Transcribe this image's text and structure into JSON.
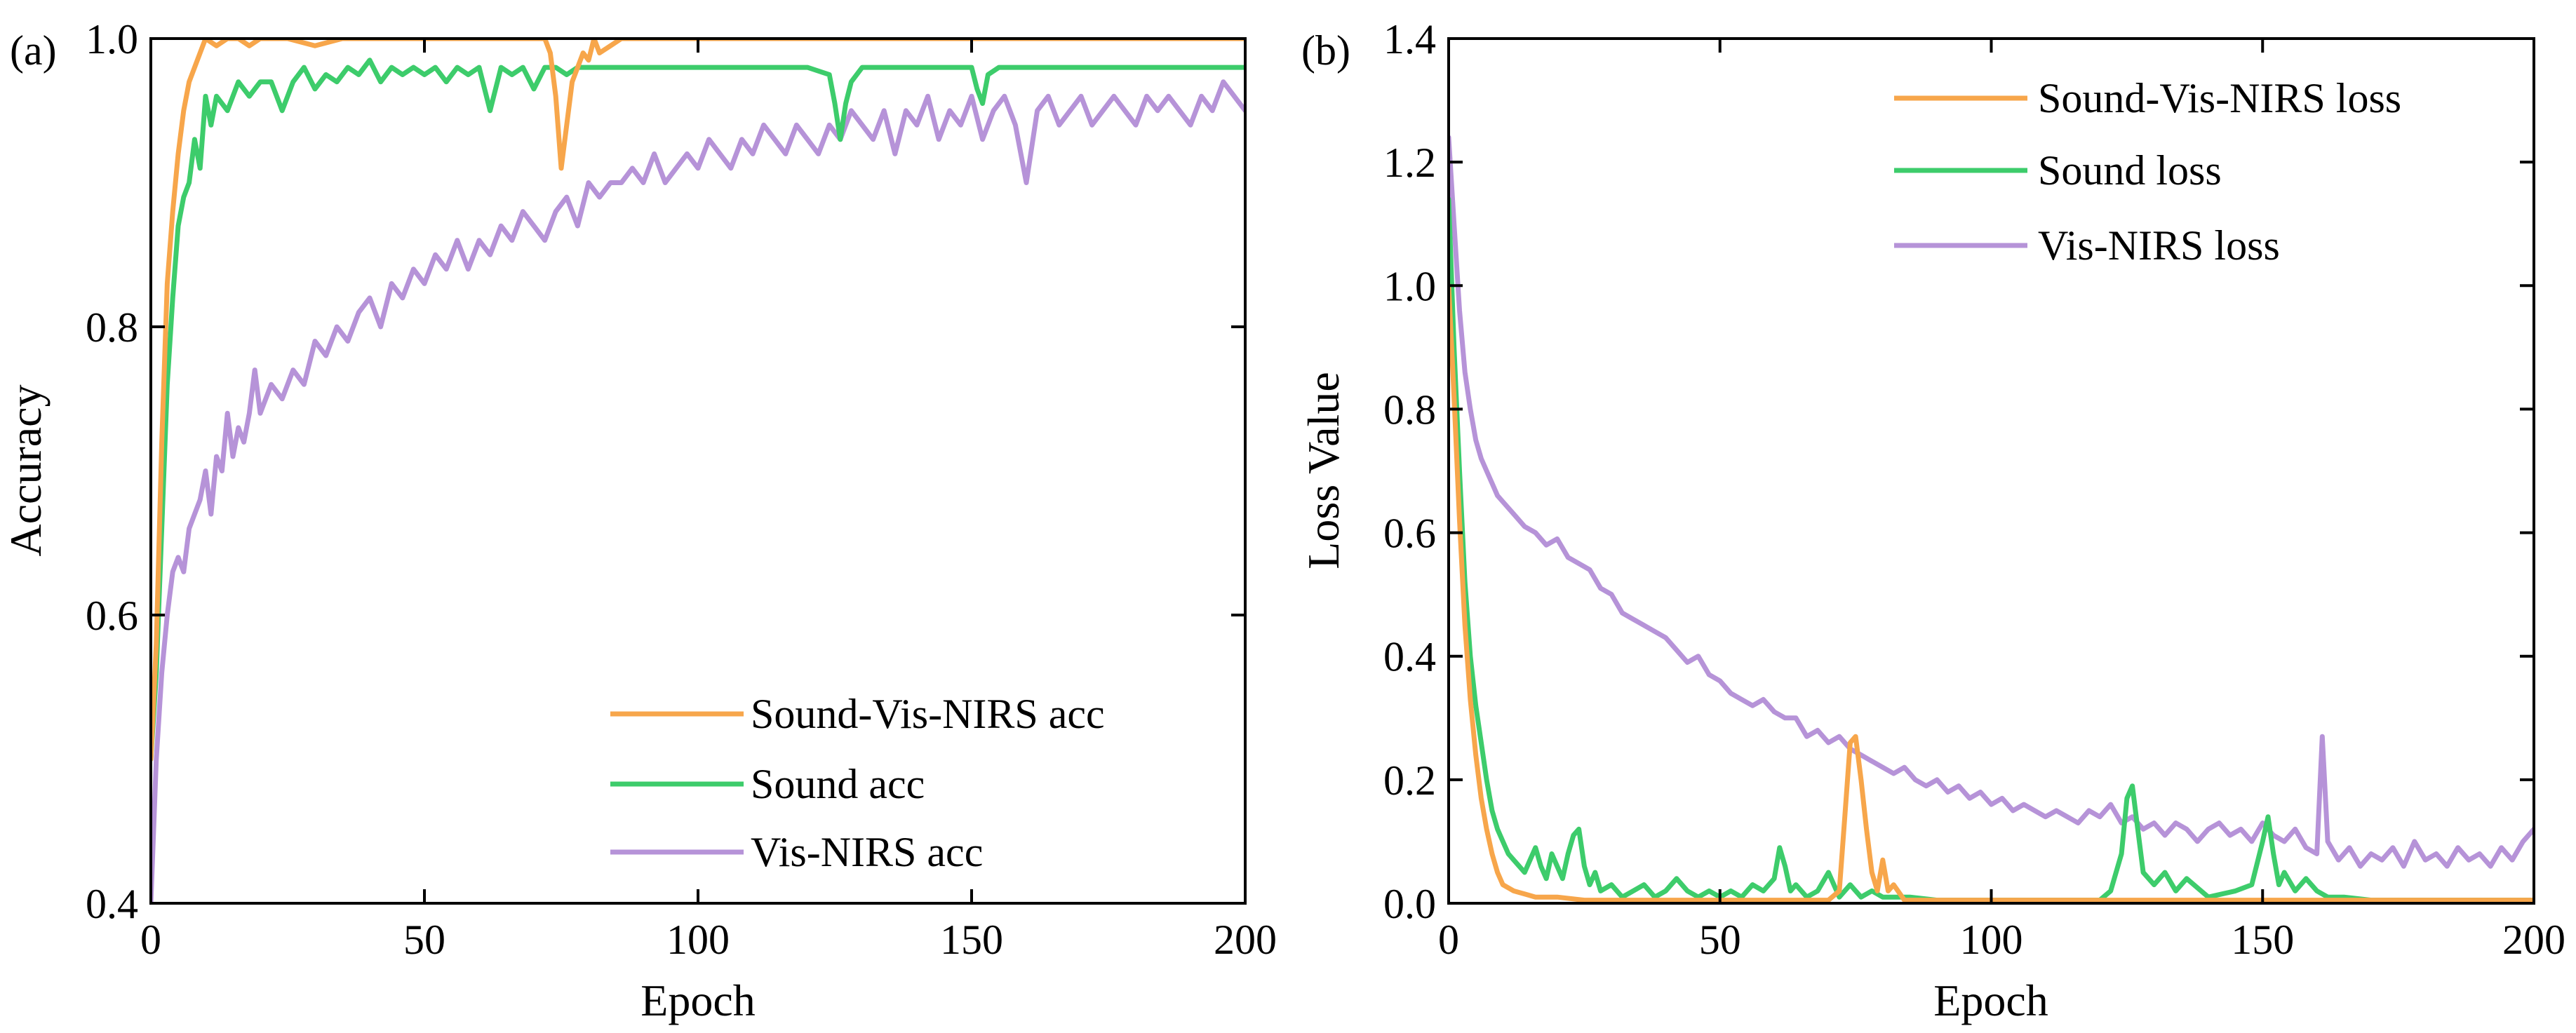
{
  "figure": {
    "colors": {
      "fused": "#F7A64B",
      "sound": "#3DCC6B",
      "visnirs": "#B693D8",
      "axis": "#000000"
    }
  },
  "chart_data": [
    {
      "panel": "(a)",
      "type": "line",
      "xlabel": "Epoch",
      "ylabel": "Accuracy",
      "xlim": [
        0,
        200
      ],
      "ylim": [
        0.4,
        1.0
      ],
      "xticks": [
        0,
        50,
        100,
        150,
        200
      ],
      "yticks": [
        0.4,
        0.6,
        0.8,
        1.0
      ],
      "xtick_labels": [
        "0",
        "50",
        "100",
        "150",
        "200"
      ],
      "ytick_labels": [
        "0.4",
        "0.6",
        "0.8",
        "1.0"
      ],
      "grid": false,
      "legend_position": "bottom-right",
      "series": [
        {
          "name": "Sound-Vis-NIRS acc",
          "color": "#F7A64B",
          "x": [
            0,
            1,
            2,
            3,
            4,
            5,
            6,
            7,
            8,
            9,
            10,
            12,
            14,
            16,
            18,
            20,
            25,
            30,
            35,
            40,
            45,
            50,
            55,
            60,
            65,
            70,
            72,
            73,
            74,
            75,
            76,
            77,
            78,
            79,
            80,
            81,
            82,
            84,
            86,
            90,
            100,
            120,
            140,
            160,
            180,
            200
          ],
          "y": [
            0.5,
            0.58,
            0.72,
            0.83,
            0.88,
            0.92,
            0.95,
            0.97,
            0.98,
            0.99,
            1.0,
            0.995,
            1.0,
            1.0,
            0.995,
            1.0,
            1.0,
            0.995,
            1.0,
            1.0,
            1.0,
            1.0,
            1.0,
            1.0,
            1.0,
            1.0,
            1.0,
            0.99,
            0.96,
            0.91,
            0.94,
            0.97,
            0.98,
            0.99,
            0.985,
            1.0,
            0.99,
            0.995,
            1.0,
            1.0,
            1.0,
            1.0,
            1.0,
            1.0,
            1.0,
            1.0
          ]
        },
        {
          "name": "Sound acc",
          "color": "#3DCC6B",
          "x": [
            0,
            1,
            2,
            3,
            4,
            5,
            6,
            7,
            8,
            9,
            10,
            11,
            12,
            14,
            16,
            18,
            20,
            22,
            24,
            26,
            28,
            30,
            32,
            34,
            36,
            38,
            40,
            42,
            44,
            46,
            48,
            50,
            52,
            54,
            56,
            58,
            60,
            62,
            64,
            66,
            68,
            70,
            72,
            74,
            76,
            78,
            80,
            85,
            90,
            100,
            110,
            120,
            124,
            125,
            126,
            127,
            128,
            130,
            135,
            140,
            145,
            150,
            151,
            152,
            153,
            155,
            160,
            170,
            180,
            190,
            200
          ],
          "y": [
            0.5,
            0.56,
            0.66,
            0.76,
            0.82,
            0.87,
            0.89,
            0.9,
            0.93,
            0.91,
            0.96,
            0.94,
            0.96,
            0.95,
            0.97,
            0.96,
            0.97,
            0.97,
            0.95,
            0.97,
            0.98,
            0.965,
            0.975,
            0.97,
            0.98,
            0.975,
            0.985,
            0.97,
            0.98,
            0.975,
            0.98,
            0.975,
            0.98,
            0.97,
            0.98,
            0.975,
            0.98,
            0.95,
            0.98,
            0.975,
            0.98,
            0.965,
            0.98,
            0.98,
            0.975,
            0.98,
            0.98,
            0.98,
            0.98,
            0.98,
            0.98,
            0.98,
            0.975,
            0.955,
            0.93,
            0.955,
            0.97,
            0.98,
            0.98,
            0.98,
            0.98,
            0.98,
            0.965,
            0.955,
            0.975,
            0.98,
            0.98,
            0.98,
            0.98,
            0.98,
            0.98
          ]
        },
        {
          "name": "Vis-NIRS acc",
          "color": "#B693D8",
          "x": [
            0,
            1,
            2,
            3,
            4,
            5,
            6,
            7,
            8,
            9,
            10,
            11,
            12,
            13,
            14,
            15,
            16,
            17,
            18,
            19,
            20,
            22,
            24,
            26,
            28,
            30,
            32,
            34,
            36,
            38,
            40,
            42,
            44,
            46,
            48,
            50,
            52,
            54,
            56,
            58,
            60,
            62,
            64,
            66,
            68,
            70,
            72,
            74,
            76,
            78,
            80,
            82,
            84,
            86,
            88,
            90,
            92,
            94,
            96,
            98,
            100,
            102,
            104,
            106,
            108,
            110,
            112,
            114,
            116,
            118,
            120,
            122,
            124,
            126,
            128,
            130,
            132,
            134,
            136,
            138,
            140,
            142,
            144,
            146,
            148,
            150,
            152,
            154,
            156,
            158,
            160,
            162,
            164,
            166,
            168,
            170,
            172,
            174,
            176,
            178,
            180,
            182,
            184,
            186,
            188,
            190,
            192,
            194,
            196,
            198,
            200
          ],
          "y": [
            0.4,
            0.5,
            0.56,
            0.6,
            0.63,
            0.64,
            0.63,
            0.66,
            0.67,
            0.68,
            0.7,
            0.67,
            0.71,
            0.7,
            0.74,
            0.71,
            0.73,
            0.72,
            0.74,
            0.77,
            0.74,
            0.76,
            0.75,
            0.77,
            0.76,
            0.79,
            0.78,
            0.8,
            0.79,
            0.81,
            0.82,
            0.8,
            0.83,
            0.82,
            0.84,
            0.83,
            0.85,
            0.84,
            0.86,
            0.84,
            0.86,
            0.85,
            0.87,
            0.86,
            0.88,
            0.87,
            0.86,
            0.88,
            0.89,
            0.87,
            0.9,
            0.89,
            0.9,
            0.9,
            0.91,
            0.9,
            0.92,
            0.9,
            0.91,
            0.92,
            0.91,
            0.93,
            0.92,
            0.91,
            0.93,
            0.92,
            0.94,
            0.93,
            0.92,
            0.94,
            0.93,
            0.92,
            0.94,
            0.93,
            0.95,
            0.94,
            0.93,
            0.95,
            0.92,
            0.95,
            0.94,
            0.96,
            0.93,
            0.95,
            0.94,
            0.96,
            0.93,
            0.95,
            0.96,
            0.94,
            0.9,
            0.95,
            0.96,
            0.94,
            0.95,
            0.96,
            0.94,
            0.95,
            0.96,
            0.95,
            0.94,
            0.96,
            0.95,
            0.96,
            0.95,
            0.94,
            0.96,
            0.95,
            0.97,
            0.96,
            0.95
          ]
        }
      ]
    },
    {
      "panel": "(b)",
      "type": "line",
      "xlabel": "Epoch",
      "ylabel": "Loss Value",
      "xlim": [
        0,
        200
      ],
      "ylim": [
        0,
        1.4
      ],
      "xticks": [
        0,
        50,
        100,
        150,
        200
      ],
      "yticks": [
        0.0,
        0.2,
        0.4,
        0.6,
        0.8,
        1.0,
        1.2,
        1.4
      ],
      "xtick_labels": [
        "0",
        "50",
        "100",
        "150",
        "200"
      ],
      "ytick_labels": [
        "0.0",
        "0.2",
        "0.4",
        "0.6",
        "0.8",
        "1.0",
        "1.2",
        "1.4"
      ],
      "grid": false,
      "legend_position": "top-right",
      "series": [
        {
          "name": "Sound-Vis-NIRS loss",
          "color": "#F7A64B",
          "x": [
            0,
            1,
            2,
            3,
            4,
            5,
            6,
            7,
            8,
            9,
            10,
            12,
            14,
            16,
            18,
            20,
            25,
            30,
            40,
            50,
            60,
            70,
            72,
            73,
            74,
            75,
            76,
            77,
            78,
            79,
            80,
            81,
            82,
            84,
            90,
            100,
            120,
            140,
            160,
            180,
            200
          ],
          "y": [
            1.0,
            0.82,
            0.62,
            0.45,
            0.33,
            0.24,
            0.17,
            0.12,
            0.08,
            0.05,
            0.03,
            0.02,
            0.015,
            0.01,
            0.01,
            0.01,
            0.005,
            0.005,
            0.005,
            0.005,
            0.005,
            0.005,
            0.02,
            0.14,
            0.26,
            0.27,
            0.2,
            0.12,
            0.05,
            0.02,
            0.07,
            0.02,
            0.03,
            0.005,
            0.005,
            0.005,
            0.005,
            0.005,
            0.005,
            0.005,
            0.005
          ]
        },
        {
          "name": "Sound loss",
          "color": "#3DCC6B",
          "x": [
            0,
            1,
            2,
            3,
            4,
            5,
            6,
            7,
            8,
            9,
            10,
            11,
            12,
            13,
            14,
            15,
            16,
            17,
            18,
            19,
            20,
            21,
            22,
            23,
            24,
            25,
            26,
            27,
            28,
            30,
            32,
            34,
            36,
            38,
            40,
            42,
            44,
            46,
            48,
            50,
            52,
            54,
            56,
            58,
            60,
            61,
            62,
            63,
            64,
            66,
            68,
            70,
            72,
            74,
            76,
            78,
            80,
            85,
            90,
            100,
            110,
            115,
            120,
            122,
            124,
            125,
            126,
            127,
            128,
            130,
            132,
            134,
            136,
            140,
            145,
            148,
            150,
            151,
            152,
            153,
            154,
            156,
            158,
            160,
            162,
            165,
            170,
            180,
            190,
            200
          ],
          "y": [
            1.14,
            0.9,
            0.7,
            0.52,
            0.4,
            0.32,
            0.26,
            0.2,
            0.15,
            0.12,
            0.1,
            0.08,
            0.07,
            0.06,
            0.05,
            0.07,
            0.09,
            0.06,
            0.04,
            0.08,
            0.06,
            0.04,
            0.08,
            0.11,
            0.12,
            0.06,
            0.03,
            0.05,
            0.02,
            0.03,
            0.01,
            0.02,
            0.03,
            0.01,
            0.02,
            0.04,
            0.02,
            0.01,
            0.02,
            0.01,
            0.02,
            0.01,
            0.03,
            0.02,
            0.04,
            0.09,
            0.06,
            0.02,
            0.03,
            0.01,
            0.02,
            0.05,
            0.01,
            0.03,
            0.01,
            0.02,
            0.01,
            0.01,
            0.005,
            0.005,
            0.005,
            0.005,
            0.005,
            0.02,
            0.08,
            0.17,
            0.19,
            0.12,
            0.05,
            0.03,
            0.05,
            0.02,
            0.04,
            0.01,
            0.02,
            0.03,
            0.1,
            0.14,
            0.08,
            0.03,
            0.05,
            0.02,
            0.04,
            0.02,
            0.01,
            0.01,
            0.005,
            0.005,
            0.005,
            0.005
          ]
        },
        {
          "name": "Vis-NIRS loss",
          "color": "#B693D8",
          "x": [
            0,
            1,
            2,
            3,
            4,
            5,
            6,
            7,
            8,
            9,
            10,
            12,
            14,
            16,
            18,
            20,
            22,
            24,
            26,
            28,
            30,
            32,
            34,
            36,
            38,
            40,
            42,
            44,
            46,
            48,
            50,
            52,
            54,
            56,
            58,
            60,
            62,
            64,
            66,
            68,
            70,
            72,
            74,
            76,
            78,
            80,
            82,
            84,
            86,
            88,
            90,
            92,
            94,
            96,
            98,
            100,
            102,
            104,
            106,
            108,
            110,
            112,
            114,
            116,
            118,
            120,
            122,
            124,
            126,
            128,
            130,
            132,
            134,
            136,
            138,
            140,
            142,
            144,
            146,
            148,
            150,
            152,
            154,
            156,
            158,
            160,
            161,
            162,
            164,
            166,
            168,
            170,
            172,
            174,
            176,
            178,
            180,
            182,
            184,
            186,
            188,
            190,
            192,
            194,
            196,
            198,
            200
          ],
          "y": [
            1.24,
            1.1,
            0.96,
            0.86,
            0.8,
            0.75,
            0.72,
            0.7,
            0.68,
            0.66,
            0.65,
            0.63,
            0.61,
            0.6,
            0.58,
            0.59,
            0.56,
            0.55,
            0.54,
            0.51,
            0.5,
            0.47,
            0.46,
            0.45,
            0.44,
            0.43,
            0.41,
            0.39,
            0.4,
            0.37,
            0.36,
            0.34,
            0.33,
            0.32,
            0.33,
            0.31,
            0.3,
            0.3,
            0.27,
            0.28,
            0.26,
            0.27,
            0.25,
            0.24,
            0.23,
            0.22,
            0.21,
            0.22,
            0.2,
            0.19,
            0.2,
            0.18,
            0.19,
            0.17,
            0.18,
            0.16,
            0.17,
            0.15,
            0.16,
            0.15,
            0.14,
            0.15,
            0.14,
            0.13,
            0.15,
            0.14,
            0.16,
            0.13,
            0.14,
            0.12,
            0.13,
            0.11,
            0.13,
            0.12,
            0.1,
            0.12,
            0.13,
            0.11,
            0.12,
            0.1,
            0.13,
            0.11,
            0.1,
            0.12,
            0.09,
            0.08,
            0.27,
            0.1,
            0.07,
            0.09,
            0.06,
            0.08,
            0.07,
            0.09,
            0.06,
            0.1,
            0.07,
            0.08,
            0.06,
            0.09,
            0.07,
            0.08,
            0.06,
            0.09,
            0.07,
            0.1,
            0.12
          ]
        }
      ]
    }
  ]
}
